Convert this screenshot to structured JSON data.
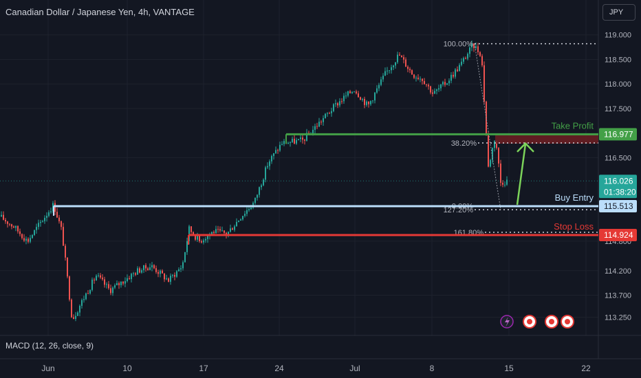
{
  "header": {
    "title": "Canadian Dollar / Japanese Yen, 4h, VANTAGE",
    "currency": "JPY"
  },
  "indicator": {
    "label": "MACD (12, 26, close, 9)"
  },
  "colors": {
    "bg": "#131722",
    "up": "#26a69a",
    "down": "#ef5350",
    "grid": "#1e222d",
    "take_profit": "#43a047",
    "buy_entry": "#bbdefb",
    "stop_loss": "#e53935",
    "price_current": "#26a69a",
    "arrow": "#7cd35a"
  },
  "chart_data": {
    "type": "candlestick",
    "title": "Canadian Dollar / Japanese Yen, 4h, VANTAGE",
    "currency": "JPY",
    "y_ticks": [
      "119.000",
      "118.500",
      "118.000",
      "117.500",
      "116.500",
      "114.800",
      "114.200",
      "113.700",
      "113.250"
    ],
    "y_range": [
      113.05,
      119.15
    ],
    "x_ticks": [
      "Jun",
      "10",
      "17",
      "24",
      "Jul",
      "8",
      "15",
      "22"
    ],
    "grid": true,
    "path_approx": [
      {
        "t": 0,
        "p": 115.3
      },
      {
        "t": 20,
        "p": 115.1
      },
      {
        "t": 40,
        "p": 114.8
      },
      {
        "t": 60,
        "p": 115.2
      },
      {
        "t": 78,
        "p": 115.55
      },
      {
        "t": 90,
        "p": 115.0
      },
      {
        "t": 105,
        "p": 113.2
      },
      {
        "t": 120,
        "p": 113.6
      },
      {
        "t": 140,
        "p": 114.1
      },
      {
        "t": 160,
        "p": 113.8
      },
      {
        "t": 180,
        "p": 114.0
      },
      {
        "t": 200,
        "p": 114.2
      },
      {
        "t": 220,
        "p": 114.3
      },
      {
        "t": 245,
        "p": 114.0
      },
      {
        "t": 265,
        "p": 114.3
      },
      {
        "t": 275,
        "p": 115.05
      },
      {
        "t": 290,
        "p": 114.8
      },
      {
        "t": 310,
        "p": 115.0
      },
      {
        "t": 330,
        "p": 114.95
      },
      {
        "t": 350,
        "p": 115.3
      },
      {
        "t": 370,
        "p": 115.6
      },
      {
        "t": 390,
        "p": 116.4
      },
      {
        "t": 410,
        "p": 116.8
      },
      {
        "t": 440,
        "p": 116.85
      },
      {
        "t": 470,
        "p": 117.3
      },
      {
        "t": 490,
        "p": 117.6
      },
      {
        "t": 515,
        "p": 117.9
      },
      {
        "t": 535,
        "p": 117.55
      },
      {
        "t": 560,
        "p": 118.2
      },
      {
        "t": 580,
        "p": 118.6
      },
      {
        "t": 600,
        "p": 118.2
      },
      {
        "t": 615,
        "p": 118.1
      },
      {
        "t": 630,
        "p": 117.8
      },
      {
        "t": 650,
        "p": 118.05
      },
      {
        "t": 670,
        "p": 118.4
      },
      {
        "t": 688,
        "p": 118.8
      },
      {
        "t": 700,
        "p": 118.6
      },
      {
        "t": 710,
        "p": 116.3
      },
      {
        "t": 720,
        "p": 116.95
      },
      {
        "t": 728,
        "p": 116.0
      },
      {
        "t": 738,
        "p": 116.03
      }
    ],
    "annotations": [
      {
        "label": "Take Profit",
        "price": 116.977
      },
      {
        "label": "Buy Entry",
        "price": 115.513
      },
      {
        "label": "Stop Loss",
        "price": 114.924
      }
    ],
    "fibonacci": [
      {
        "label": "100.00%"
      },
      {
        "label": "38.20%"
      },
      {
        "label": "0.00%"
      },
      {
        "label": "127.20%"
      },
      {
        "label": "161.80%"
      }
    ],
    "price_labels": [
      {
        "text": "116.977",
        "price": 116.977,
        "kind": "take_profit"
      },
      {
        "text": "116.026",
        "price": 116.026,
        "kind": "current",
        "sub": "01:38:20"
      },
      {
        "text": "115.513",
        "price": 115.513,
        "kind": "buy_entry"
      },
      {
        "text": "114.924",
        "price": 114.924,
        "kind": "stop_loss"
      }
    ]
  }
}
